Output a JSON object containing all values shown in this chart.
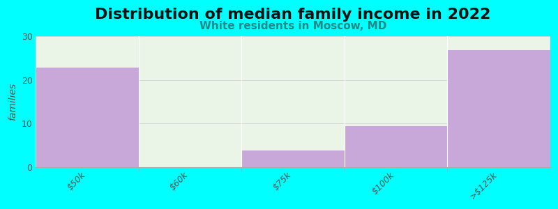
{
  "title": "Distribution of median family income in 2022",
  "subtitle": "White residents in Moscow, MD",
  "bin_edges": [
    0,
    1,
    2,
    3,
    4,
    5
  ],
  "bin_labels": [
    "$50k",
    "$60k",
    "$75k",
    "$100k",
    ">$125k"
  ],
  "values": [
    23,
    0,
    4,
    9.5,
    27
  ],
  "bar_color": "#c8a8d8",
  "background_color": "#00ffff",
  "plot_bg_color_left": "#e8f5e4",
  "plot_bg_color_right": "#e0f0ec",
  "ylabel": "families",
  "ylim": [
    0,
    30
  ],
  "yticks": [
    0,
    10,
    20,
    30
  ],
  "title_fontsize": 16,
  "subtitle_fontsize": 11,
  "tick_color": "#555555",
  "subtitle_color": "#228888",
  "label_fontsize": 9,
  "ylabel_fontsize": 10
}
